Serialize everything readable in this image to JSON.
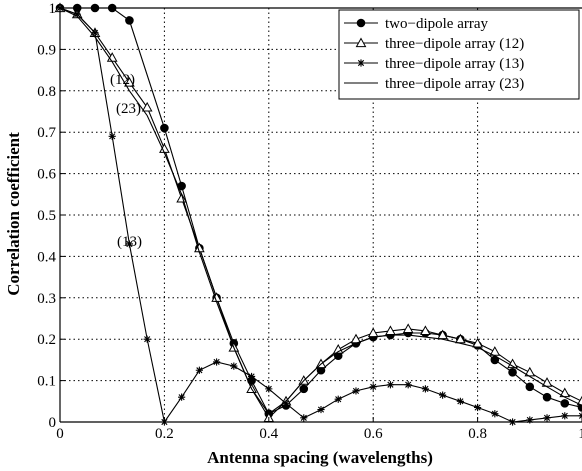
{
  "chart_data": {
    "type": "line",
    "xlabel": "Antenna spacing (wavelengths)",
    "ylabel": "Correlation coefficient",
    "xlim": [
      0,
      1
    ],
    "ylim": [
      0,
      1
    ],
    "xticks": [
      "0",
      "0.2",
      "0.4",
      "0.6",
      "0.8",
      "1"
    ],
    "yticks": [
      "0",
      "0.1",
      "0.2",
      "0.3",
      "0.4",
      "0.5",
      "0.6",
      "0.7",
      "0.8",
      "0.9",
      "1"
    ],
    "grid": true,
    "legend_position": "top-right",
    "annotations": [
      "(12)",
      "(23)",
      "(13)"
    ],
    "series": [
      {
        "name": "two−dipole array",
        "marker": "filled-circle",
        "x": [
          0,
          0.033,
          0.067,
          0.1,
          0.133,
          0.2,
          0.233,
          0.267,
          0.3,
          0.333,
          0.367,
          0.4,
          0.433,
          0.467,
          0.5,
          0.533,
          0.567,
          0.6,
          0.633,
          0.667,
          0.7,
          0.733,
          0.767,
          0.8,
          0.833,
          0.867,
          0.9,
          0.933,
          0.967,
          1.0
        ],
        "y": [
          1.0,
          1.0,
          1.0,
          1.0,
          0.97,
          0.71,
          0.57,
          0.42,
          0.3,
          0.19,
          0.1,
          0.02,
          0.04,
          0.08,
          0.125,
          0.16,
          0.19,
          0.205,
          0.21,
          0.215,
          0.215,
          0.21,
          0.2,
          0.185,
          0.15,
          0.12,
          0.085,
          0.06,
          0.045,
          0.035
        ]
      },
      {
        "name": "three−dipole array (12)",
        "marker": "open-triangle",
        "x": [
          0,
          0.033,
          0.067,
          0.1,
          0.133,
          0.167,
          0.2,
          0.233,
          0.267,
          0.3,
          0.333,
          0.367,
          0.4,
          0.433,
          0.467,
          0.5,
          0.533,
          0.567,
          0.6,
          0.633,
          0.667,
          0.7,
          0.733,
          0.767,
          0.8,
          0.833,
          0.867,
          0.9,
          0.933,
          0.967,
          1.0
        ],
        "y": [
          1.0,
          0.985,
          0.94,
          0.88,
          0.82,
          0.76,
          0.66,
          0.54,
          0.42,
          0.3,
          0.18,
          0.08,
          0.01,
          0.05,
          0.1,
          0.14,
          0.175,
          0.2,
          0.215,
          0.22,
          0.225,
          0.22,
          0.21,
          0.2,
          0.19,
          0.17,
          0.14,
          0.12,
          0.095,
          0.07,
          0.05
        ]
      },
      {
        "name": "three−dipole array (13)",
        "marker": "asterisk",
        "x": [
          0,
          0.033,
          0.067,
          0.1,
          0.133,
          0.167,
          0.2,
          0.233,
          0.267,
          0.3,
          0.333,
          0.367,
          0.4,
          0.433,
          0.467,
          0.5,
          0.533,
          0.567,
          0.6,
          0.633,
          0.667,
          0.7,
          0.733,
          0.767,
          0.8,
          0.833,
          0.867,
          0.9,
          0.933,
          0.967,
          1.0
        ],
        "y": [
          1.0,
          0.985,
          0.94,
          0.69,
          0.43,
          0.2,
          0.0,
          0.06,
          0.125,
          0.145,
          0.135,
          0.11,
          0.08,
          0.045,
          0.01,
          0.03,
          0.055,
          0.075,
          0.085,
          0.09,
          0.09,
          0.08,
          0.065,
          0.05,
          0.035,
          0.02,
          0.0,
          0.005,
          0.01,
          0.015,
          0.015
        ]
      },
      {
        "name": "three−dipole array (23)",
        "marker": "none",
        "x": [
          0,
          0.033,
          0.067,
          0.1,
          0.133,
          0.167,
          0.2,
          0.233,
          0.267,
          0.3,
          0.333,
          0.367,
          0.4,
          0.433,
          0.467,
          0.5,
          0.533,
          0.567,
          0.6,
          0.633,
          0.667,
          0.7,
          0.733,
          0.767,
          0.8,
          0.833,
          0.867,
          0.9,
          0.933,
          0.967,
          1.0
        ],
        "y": [
          1.0,
          0.98,
          0.93,
          0.87,
          0.8,
          0.74,
          0.65,
          0.55,
          0.41,
          0.29,
          0.18,
          0.08,
          0.02,
          0.05,
          0.1,
          0.14,
          0.17,
          0.19,
          0.205,
          0.21,
          0.21,
          0.205,
          0.2,
          0.19,
          0.18,
          0.16,
          0.135,
          0.11,
          0.085,
          0.06,
          0.04
        ]
      }
    ]
  }
}
